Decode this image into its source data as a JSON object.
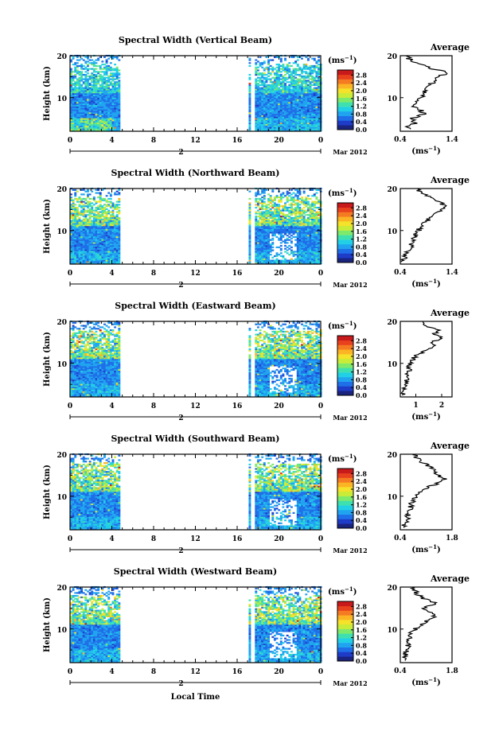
{
  "figure": {
    "xlabel": "Local Time",
    "date_label": "Mar 2012",
    "day_label": "2"
  },
  "colorbar": {
    "unit_base": "(ms",
    "unit_exp": "−1",
    "unit_close": ")",
    "ticks": [
      "2.8",
      "2.4",
      "2.0",
      "1.6",
      "1.2",
      "0.8",
      "0.4",
      "0.0"
    ],
    "range": [
      0,
      3.0
    ],
    "colors": [
      "#1a237e",
      "#1e3cc8",
      "#1f6fe8",
      "#20a4f0",
      "#22d0e6",
      "#3fe0b0",
      "#7eea6c",
      "#c8ec38",
      "#f5e22a",
      "#fbb424",
      "#f57b22",
      "#e8411d",
      "#c8191b"
    ]
  },
  "chart_data": [
    {
      "type": "heatmap",
      "title": "Spectral Width (Vertical Beam)",
      "ylabel": "Height (km)",
      "xlim": [
        0,
        24
      ],
      "ylim": [
        2,
        20
      ],
      "xticks": [
        "0",
        "4",
        "8",
        "12",
        "16",
        "20",
        "0"
      ],
      "yticks": [
        "20",
        "10"
      ],
      "data_segments": [
        [
          0,
          4.8
        ],
        [
          17.1,
          17.3
        ],
        [
          17.7,
          24
        ]
      ],
      "profile": {
        "title": "Average",
        "xlabel_base": "(ms",
        "xlabel_exp": "−1",
        "xlabel_close": ")",
        "xlim": [
          0.4,
          1.4
        ],
        "xticks": [
          "0.4",
          "1.4"
        ],
        "yticks": [
          "20",
          "10"
        ],
        "height_km": [
          3,
          4,
          5,
          6,
          7,
          8,
          9,
          10,
          11,
          12,
          13,
          14,
          15,
          16,
          17,
          18,
          19,
          20
        ],
        "values": [
          0.55,
          0.7,
          0.6,
          0.85,
          0.8,
          0.6,
          0.75,
          0.8,
          0.9,
          0.85,
          0.95,
          1.1,
          1.15,
          1.3,
          1.0,
          0.8,
          0.6,
          0.5
        ]
      }
    },
    {
      "type": "heatmap",
      "title": "Spectral Width (Northward Beam)",
      "ylabel": "Height (km)",
      "xlim": [
        0,
        24
      ],
      "ylim": [
        2,
        20
      ],
      "xticks": [
        "0",
        "4",
        "8",
        "12",
        "16",
        "20",
        "0"
      ],
      "yticks": [
        "20",
        "10"
      ],
      "data_segments": [
        [
          0,
          4.8
        ],
        [
          17.1,
          17.3
        ],
        [
          17.7,
          24
        ]
      ],
      "profile": {
        "title": "Average",
        "xlabel_base": "(ms",
        "xlabel_exp": "−1",
        "xlabel_close": ")",
        "xlim": [
          0.4,
          1.4
        ],
        "xticks": [
          "0.4",
          "1.4"
        ],
        "yticks": [
          "20",
          "10"
        ],
        "height_km": [
          3,
          4,
          5,
          6,
          7,
          8,
          9,
          10,
          11,
          12,
          13,
          14,
          15,
          16,
          17,
          18,
          19,
          20
        ],
        "values": [
          0.45,
          0.5,
          0.55,
          0.6,
          0.62,
          0.65,
          0.7,
          0.75,
          0.8,
          0.9,
          0.95,
          1.1,
          1.2,
          1.25,
          1.15,
          0.95,
          0.8,
          0.7
        ]
      }
    },
    {
      "type": "heatmap",
      "title": "Spectral Width (Eastward Beam)",
      "ylabel": "Height (km)",
      "xlim": [
        0,
        24
      ],
      "ylim": [
        2,
        20
      ],
      "xticks": [
        "0",
        "4",
        "8",
        "12",
        "16",
        "20",
        "0"
      ],
      "yticks": [
        "20",
        "10"
      ],
      "data_segments": [
        [
          0,
          4.8
        ],
        [
          17.1,
          17.3
        ],
        [
          17.7,
          24
        ]
      ],
      "profile": {
        "title": "Average",
        "xlabel_base": "(ms",
        "xlabel_exp": "−1",
        "xlabel_close": ")",
        "xlim": [
          0.4,
          2.4
        ],
        "xticks": [
          "1",
          "2"
        ],
        "yticks": [
          "20",
          "10"
        ],
        "height_km": [
          3,
          4,
          5,
          6,
          7,
          8,
          9,
          10,
          11,
          12,
          13,
          14,
          15,
          16,
          17,
          18,
          19,
          20
        ],
        "values": [
          0.55,
          0.6,
          0.6,
          0.65,
          0.65,
          0.7,
          0.75,
          0.8,
          0.9,
          1.0,
          1.4,
          1.8,
          1.6,
          2.0,
          1.7,
          1.9,
          1.4,
          1.2
        ]
      }
    },
    {
      "type": "heatmap",
      "title": "Spectral Width (Southward Beam)",
      "ylabel": "Height (km)",
      "xlim": [
        0,
        24
      ],
      "ylim": [
        2,
        20
      ],
      "xticks": [
        "0",
        "4",
        "8",
        "12",
        "16",
        "20",
        "0"
      ],
      "yticks": [
        "20",
        "10"
      ],
      "data_segments": [
        [
          0,
          4.8
        ],
        [
          17.1,
          17.3
        ],
        [
          17.7,
          24
        ]
      ],
      "profile": {
        "title": "Average",
        "xlabel_base": "(ms",
        "xlabel_exp": "−1",
        "xlabel_close": ")",
        "xlim": [
          0.4,
          1.8
        ],
        "xticks": [
          "0.4",
          "1.8"
        ],
        "yticks": [
          "20",
          "10"
        ],
        "height_km": [
          3,
          4,
          5,
          6,
          7,
          8,
          9,
          10,
          11,
          12,
          13,
          14,
          15,
          16,
          17,
          18,
          19,
          20
        ],
        "values": [
          0.5,
          0.55,
          0.6,
          0.62,
          0.65,
          0.7,
          0.75,
          0.8,
          0.9,
          1.1,
          1.4,
          1.6,
          1.45,
          1.3,
          1.2,
          1.0,
          0.85,
          0.75
        ]
      }
    },
    {
      "type": "heatmap",
      "title": "Spectral Width (Westward Beam)",
      "ylabel": "Height (km)",
      "xlim": [
        0,
        24
      ],
      "ylim": [
        2,
        20
      ],
      "xticks": [
        "0",
        "4",
        "8",
        "12",
        "16",
        "20",
        "0"
      ],
      "yticks": [
        "20",
        "10"
      ],
      "data_segments": [
        [
          0,
          4.8
        ],
        [
          17.1,
          17.3
        ],
        [
          17.7,
          24
        ]
      ],
      "profile": {
        "title": "Average",
        "xlabel_base": "(ms",
        "xlabel_exp": "−1",
        "xlabel_close": ")",
        "xlim": [
          0.4,
          1.8
        ],
        "xticks": [
          "0.4",
          "1.8"
        ],
        "yticks": [
          "20",
          "10"
        ],
        "height_km": [
          3,
          4,
          5,
          6,
          7,
          8,
          9,
          10,
          11,
          12,
          13,
          14,
          15,
          16,
          17,
          18,
          19,
          20
        ],
        "values": [
          0.5,
          0.55,
          0.55,
          0.6,
          0.65,
          0.65,
          0.7,
          0.8,
          0.95,
          1.1,
          1.3,
          1.2,
          1.0,
          1.4,
          1.1,
          0.9,
          0.8,
          0.7
        ]
      }
    }
  ]
}
